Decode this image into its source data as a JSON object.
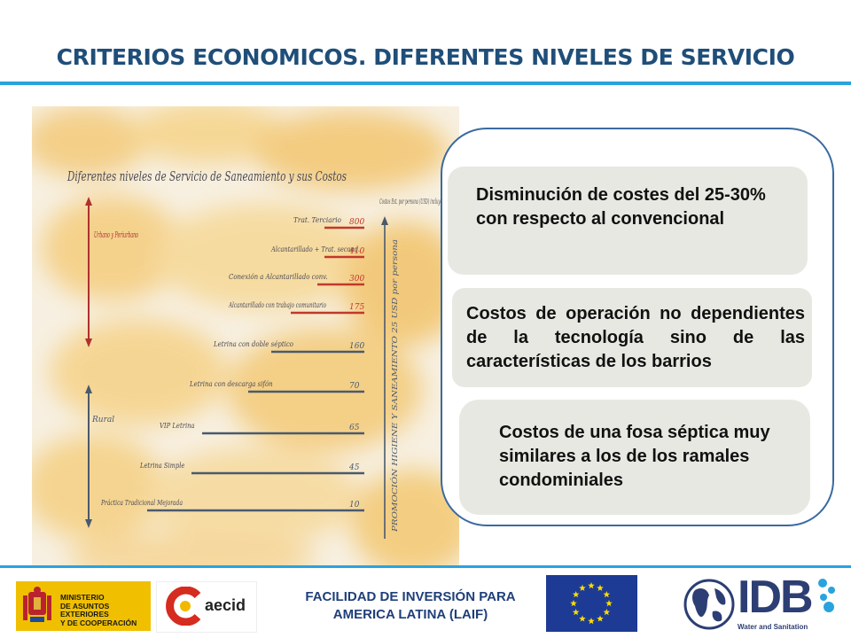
{
  "title": "CRITERIOS ECONOMICOS. DIFERENTES NIVELES DE SERVICIO",
  "sketch": {
    "heading": "Diferentes niveles de Servicio de Saneamiento y sus Costos",
    "right_caption": "Costos Est. por persona (USD) incluye operación",
    "vertical_caption": "PROMOCIÓN HIGIENE Y SANEAMIENTO 25 USD por persona",
    "zone_urban": "Urbano y Periurbano",
    "zone_rural": "Rural",
    "levels": [
      {
        "label": "Trat. Terciario",
        "value": "800",
        "color": "#c0392b"
      },
      {
        "label": "Alcantarillado + Trat. second.",
        "value": "410",
        "color": "#c0392b"
      },
      {
        "label": "Conexión a Alcantarillado conv.",
        "value": "300",
        "color": "#c0392b"
      },
      {
        "label": "Alcantarillado con trabajo comunitario",
        "value": "175",
        "color": "#c0392b"
      },
      {
        "label": "Letrina con doble séptico",
        "value": "160",
        "color": "#4a5a6e"
      },
      {
        "label": "Letrina con descarga sifón",
        "value": "70",
        "color": "#4a5a6e"
      },
      {
        "label": "VIP Letrina",
        "value": "65",
        "color": "#4a5a6e"
      },
      {
        "label": "Letrina Simple",
        "value": "45",
        "color": "#4a5a6e"
      },
      {
        "label": "Práctica Tradicional Mejorada",
        "value": "10",
        "color": "#4a5a6e"
      }
    ]
  },
  "boxes": [
    "Disminución de costes del 25-30% con respecto al convencional",
    "Costos de operación no dependientes de la tecnología sino de las características de los barrios",
    "Costos de una fosa séptica muy similares a los de los ramales condominiales"
  ],
  "footer": {
    "ministry": [
      "MINISTERIO",
      "DE ASUNTOS EXTERIORES",
      "Y DE COOPERACIÓN"
    ],
    "aecid": "aecid",
    "laif": [
      "FACILIDAD DE INVERSIÓN PARA",
      "AMERICA LATINA (LAIF)"
    ],
    "idb": "IDB",
    "idb_sub": "Water and Sanitation"
  },
  "colors": {
    "title": "#1f4e79",
    "rule": "#29a3dd",
    "frame": "#3a6aa0",
    "box_bg": "#e8e8e3"
  }
}
